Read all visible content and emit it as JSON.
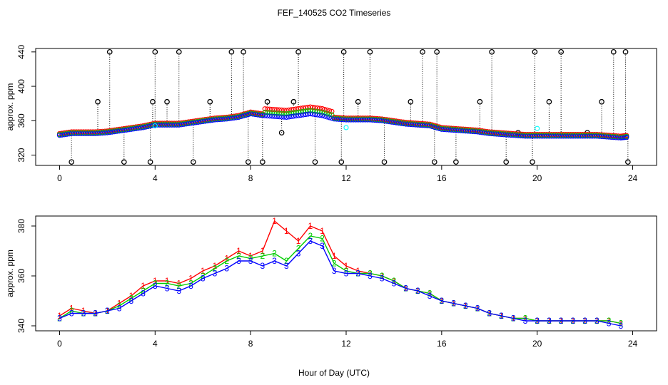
{
  "title": "FEF_140525  CO2 Timeseries",
  "xlabel": "Hour of Day (UTC)",
  "colors": {
    "s1": "#ff0000",
    "s2": "#00cc00",
    "s3": "#0000ff",
    "s4": "#00ffff",
    "ref": "#000000"
  },
  "chart_data": [
    {
      "type": "scatter",
      "ylabel": "approx. ppm",
      "xlim": [
        -1,
        25
      ],
      "ylim": [
        308,
        444
      ],
      "xticks": [
        0,
        4,
        8,
        12,
        16,
        20,
        24
      ],
      "yticks": [
        320,
        360,
        400,
        440
      ],
      "ticks_x": [
        "0",
        "4",
        "8",
        "12",
        "16",
        "20",
        "24"
      ],
      "ticks_y": [
        "320",
        "360",
        "400",
        "440"
      ],
      "markers_black_x": [
        0.5,
        1.6,
        2.1,
        2.7,
        3.8,
        3.9,
        4.0,
        4.5,
        5.0,
        5.6,
        6.3,
        7.2,
        7.7,
        7.9,
        8.5,
        8.7,
        9.3,
        9.8,
        10.0,
        10.7,
        11.8,
        11.9,
        12.5,
        13.0,
        13.6,
        14.7,
        15.2,
        15.7,
        15.8,
        16.6,
        17.6,
        18.1,
        18.7,
        19.2,
        19.8,
        19.9,
        20.5,
        21.0,
        22.1,
        22.7,
        23.2,
        23.7,
        23.8
      ],
      "markers_black_y": [
        312,
        382,
        440,
        312,
        312,
        382,
        440,
        382,
        440,
        312,
        382,
        440,
        440,
        312,
        312,
        382,
        346,
        382,
        440,
        312,
        312,
        440,
        382,
        440,
        312,
        382,
        440,
        312,
        440,
        312,
        382,
        440,
        312,
        346,
        312,
        440,
        382,
        440,
        346,
        382,
        440,
        440,
        312
      ],
      "trend_x": [
        0,
        0.5,
        1,
        1.5,
        2,
        2.5,
        3,
        3.5,
        4,
        4.5,
        5,
        5.5,
        6,
        6.5,
        7,
        7.5,
        8,
        8.5,
        9,
        9.5,
        10,
        10.5,
        11,
        11.5,
        12,
        12.5,
        13,
        13.5,
        14,
        14.5,
        15,
        15.5,
        16,
        16.5,
        17,
        17.5,
        18,
        18.5,
        19,
        19.5,
        20,
        20.5,
        21,
        21.5,
        22,
        22.5,
        23,
        23.5,
        23.8
      ],
      "trend_y": [
        343,
        345,
        345,
        345,
        346,
        348,
        350,
        352,
        355,
        355,
        355,
        357,
        359,
        361,
        362,
        364,
        368,
        366,
        365,
        364,
        366,
        368,
        366,
        362,
        361,
        361,
        361,
        360,
        358,
        356,
        355,
        354,
        350,
        349,
        348,
        347,
        345,
        344,
        343,
        342,
        342,
        342,
        342,
        342,
        342,
        342,
        341,
        340,
        341
      ]
    },
    {
      "type": "line",
      "ylabel": "approx. ppm",
      "xlim": [
        -1,
        25
      ],
      "ylim": [
        338,
        384
      ],
      "xticks": [
        0,
        4,
        8,
        12,
        16,
        20,
        24
      ],
      "yticks": [
        340,
        360,
        380
      ],
      "ticks_x": [
        "0",
        "4",
        "8",
        "12",
        "16",
        "20",
        "24"
      ],
      "ticks_y": [
        "340",
        "360",
        "380"
      ],
      "x": [
        0,
        0.5,
        1,
        1.5,
        2,
        2.5,
        3,
        3.5,
        4,
        4.5,
        5,
        5.5,
        6,
        6.5,
        7,
        7.5,
        8,
        8.5,
        9,
        9.5,
        10,
        10.5,
        11,
        11.5,
        12,
        12.5,
        13,
        13.5,
        14,
        14.5,
        15,
        15.5,
        16,
        16.5,
        17,
        17.5,
        18,
        18.5,
        19,
        19.5,
        20,
        20.5,
        21,
        21.5,
        22,
        22.5,
        23,
        23.5
      ],
      "series": [
        {
          "name": "1",
          "values": [
            344,
            347,
            346,
            345,
            346,
            349,
            352,
            356,
            358,
            358,
            357,
            359,
            362,
            364,
            367,
            370,
            368,
            370,
            382,
            378,
            374,
            380,
            378,
            368,
            364,
            362,
            361,
            360,
            358,
            355,
            354,
            353,
            350,
            349,
            348,
            347,
            345,
            344,
            343,
            343,
            342,
            342,
            342,
            342,
            342,
            342,
            342,
            341
          ]
        },
        {
          "name": "2",
          "values": [
            343,
            346,
            345,
            345,
            346,
            348,
            351,
            354,
            357,
            357,
            356,
            357,
            360,
            363,
            366,
            368,
            367,
            368,
            369,
            366,
            371,
            376,
            375,
            365,
            362,
            361,
            361,
            360,
            358,
            355,
            354,
            353,
            350,
            349,
            348,
            347,
            345,
            344,
            343,
            343,
            342,
            342,
            342,
            342,
            342,
            342,
            342,
            341
          ]
        },
        {
          "name": "3",
          "values": [
            343,
            345,
            345,
            345,
            346,
            347,
            350,
            353,
            356,
            355,
            354,
            356,
            359,
            361,
            363,
            366,
            366,
            364,
            366,
            364,
            369,
            374,
            372,
            362,
            361,
            361,
            360,
            359,
            357,
            355,
            354,
            352,
            350,
            349,
            348,
            347,
            345,
            344,
            343,
            342,
            342,
            342,
            342,
            342,
            342,
            342,
            341,
            340
          ]
        }
      ]
    }
  ]
}
